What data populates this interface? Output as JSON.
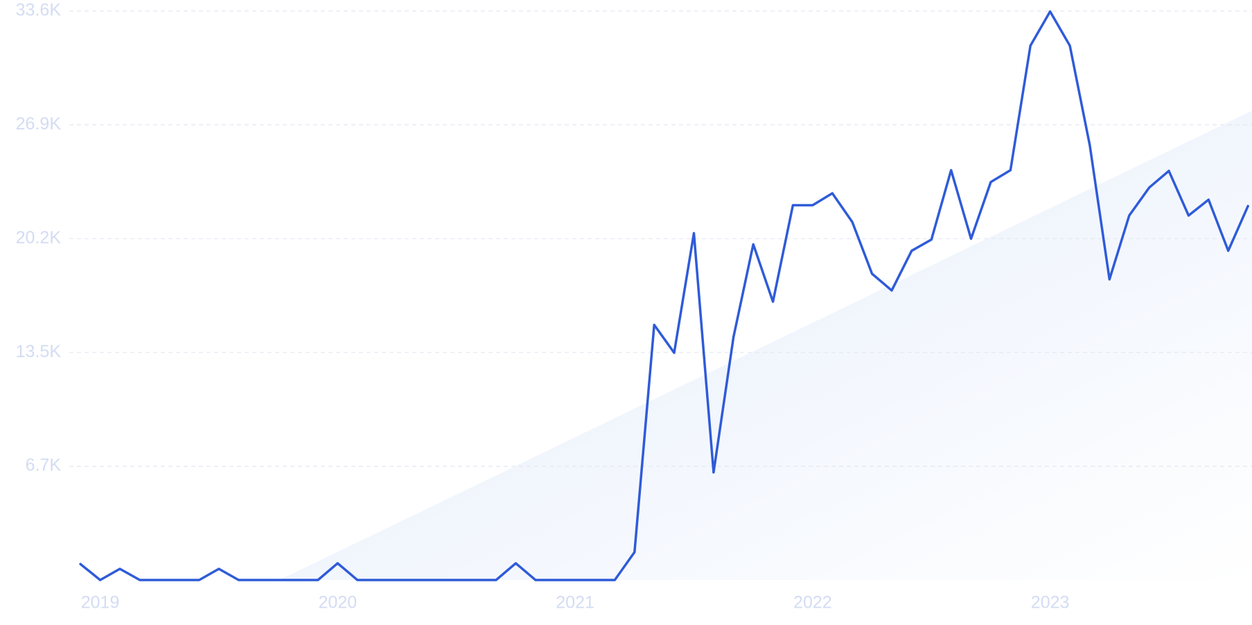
{
  "chart_data": {
    "type": "line",
    "x": [
      2018.917,
      2019,
      2019.083,
      2019.167,
      2019.25,
      2019.333,
      2019.417,
      2019.5,
      2019.583,
      2019.667,
      2019.75,
      2019.833,
      2019.917,
      2020,
      2020.083,
      2020.167,
      2020.25,
      2020.333,
      2020.417,
      2020.5,
      2020.583,
      2020.667,
      2020.75,
      2020.833,
      2020.917,
      2021,
      2021.083,
      2021.167,
      2021.25,
      2021.333,
      2021.417,
      2021.5,
      2021.583,
      2021.667,
      2021.75,
      2021.833,
      2021.917,
      2022,
      2022.083,
      2022.167,
      2022.25,
      2022.333,
      2022.417,
      2022.5,
      2022.583,
      2022.667,
      2022.75,
      2022.833,
      2022.917,
      2023,
      2023.083,
      2023.167,
      2023.25,
      2023.333,
      2023.417,
      2023.5,
      2023.583,
      2023.667,
      2023.75,
      2023.833
    ],
    "series": [
      {
        "color": "#2f5bd8",
        "values": [
          940,
          0,
          660,
          0,
          0,
          0,
          0,
          660,
          0,
          0,
          0,
          0,
          0,
          990,
          0,
          0,
          0,
          0,
          0,
          0,
          0,
          0,
          990,
          0,
          0,
          0,
          0,
          0,
          1650,
          15080,
          13430,
          20500,
          6360,
          14370,
          19840,
          16450,
          22150,
          22150,
          22860,
          21160,
          18100,
          17110,
          19460,
          20120,
          24220,
          20170,
          23520,
          24220,
          31580,
          33600,
          31580,
          25690,
          17770,
          21540,
          23190,
          24180,
          21540,
          22480,
          19460,
          22100
        ]
      }
    ],
    "xlim": [
      2018.87,
      2023.85
    ],
    "xticks": [
      2019,
      2020,
      2021,
      2022,
      2023
    ],
    "ylim": [
      0,
      33625
    ],
    "yticks": [
      {
        "value": 6725,
        "label": "6.7K"
      },
      {
        "value": 13450,
        "label": "13.5K"
      },
      {
        "value": 20175,
        "label": "20.2K"
      },
      {
        "value": 26900,
        "label": "26.9K"
      },
      {
        "value": 33625,
        "label": "33.6K"
      }
    ],
    "grid": true
  }
}
